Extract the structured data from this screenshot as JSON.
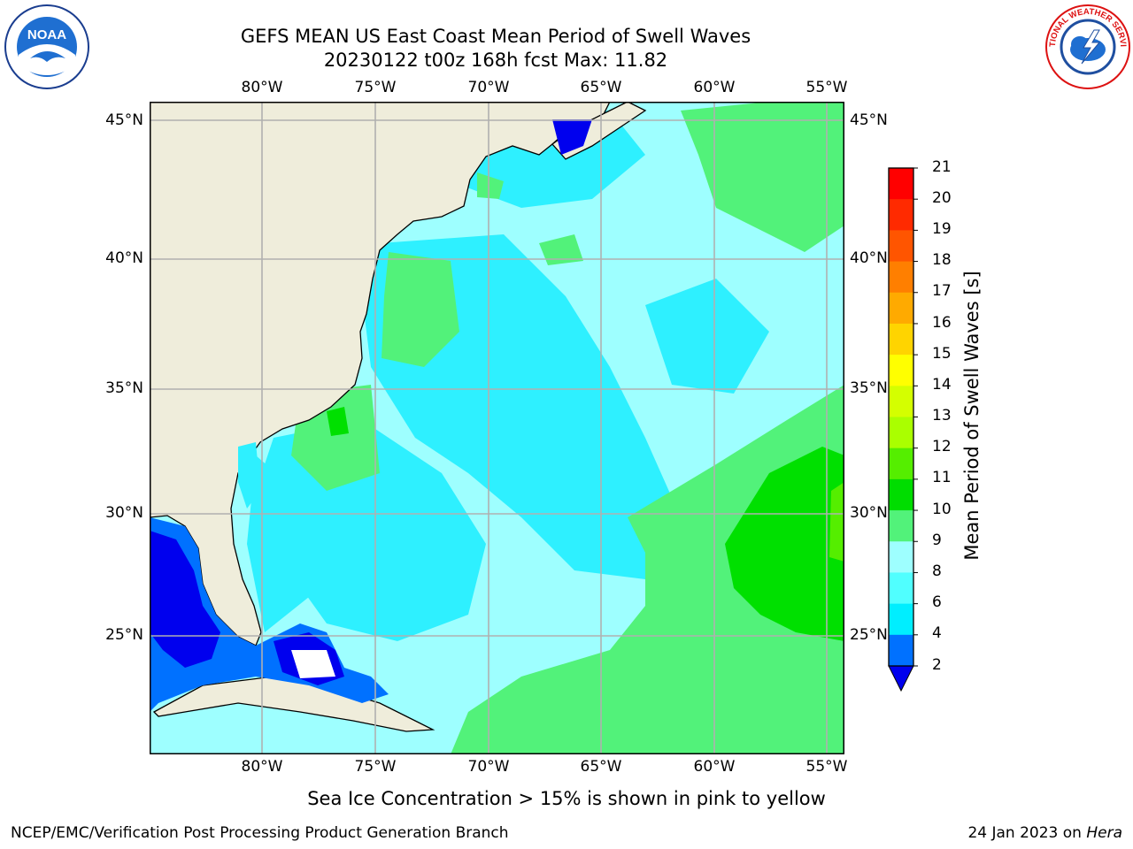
{
  "title": {
    "line1": "GEFS MEAN US East Coast Mean Period of Swell Waves",
    "line2": "20230122 t00z 168h fcst   Max: 11.82"
  },
  "logos": {
    "left": {
      "icon": "noaa-logo",
      "text": "NOAA",
      "ring_text": "NATIONAL OCEANIC AND ATMOSPHERIC ADMINISTRATION · U.S. DEPARTMENT OF COMMERCE"
    },
    "right": {
      "icon": "nws-logo",
      "ring_text": "NATIONAL WEATHER SERVICE"
    }
  },
  "map": {
    "lon_ticks": [
      "80°W",
      "75°W",
      "70°W",
      "65°W",
      "60°W",
      "55°W"
    ],
    "lat_ticks": [
      "45°N",
      "40°N",
      "35°N",
      "30°N",
      "25°N"
    ],
    "colors": {
      "land": "#efeddb",
      "ocean_base": "#9effff",
      "ocean_cyan": "#2ef0ff",
      "ocean_green": "#52f27a",
      "green_dark": "#00e000",
      "blue": "#0071ff",
      "deep_blue": "#0000ee",
      "grid": "#b0b0b0"
    }
  },
  "colorbar": {
    "label": "Mean Period of Swell Waves [s]",
    "ticks": [
      "21",
      "20",
      "19",
      "18",
      "17",
      "16",
      "15",
      "14",
      "13",
      "12",
      "11",
      "10",
      "9",
      "8",
      "6",
      "4",
      "2"
    ],
    "colors": [
      "#ff0000",
      "#ff2a00",
      "#ff5500",
      "#ff7f00",
      "#ffaa00",
      "#ffd400",
      "#ffff00",
      "#d4ff00",
      "#aaff00",
      "#55ee00",
      "#00dd00",
      "#52f27a",
      "#9effff",
      "#50ffff",
      "#00eeff",
      "#0071ff"
    ],
    "extend_color": "#0000ee"
  },
  "note": "Sea Ice Concentration > 15% is shown in pink to yellow",
  "footer": {
    "left": "NCEP/EMC/Verification Post Processing Product Generation Branch",
    "right_date": "24 Jan 2023 on ",
    "right_machine": "Hera"
  }
}
